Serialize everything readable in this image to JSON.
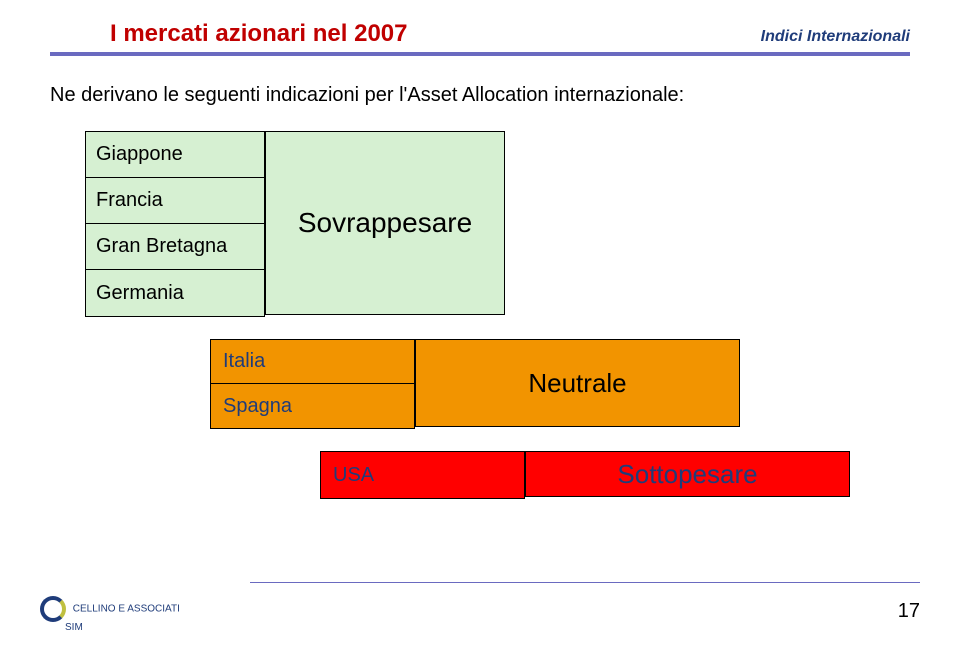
{
  "header": {
    "title": "I mercati azionari nel 2007",
    "subtitle": "Indici Internazionali",
    "underline_color": "#6a6ac0"
  },
  "intro": "Ne derivano le seguenti indicazioni per l'Asset Allocation internazionale:",
  "blocks": {
    "sovrappesare": {
      "items": [
        "Giappone",
        "Francia",
        "Gran Bretagna",
        "Germania"
      ],
      "label": "Sovrappesare",
      "bg_color": "#d6f0d2",
      "label_color": "#000000",
      "item_color": "#000000"
    },
    "neutrale": {
      "items": [
        "Italia",
        "Spagna"
      ],
      "label": "Neutrale",
      "bg_color": "#f29400",
      "label_color": "#000000",
      "item_color": "#1f3c7a"
    },
    "sottopesare": {
      "items": [
        "USA"
      ],
      "label": "Sottopesare",
      "bg_color": "#ff0000",
      "label_color": "#1f3c7a",
      "item_color": "#1f3c7a"
    }
  },
  "footer": {
    "page_number": "17",
    "logo_line1": "CELLINO E ASSOCIATI",
    "logo_line2": "SIM"
  },
  "styles": {
    "title_color": "#c00000",
    "subtitle_color": "#1f3c7a",
    "title_fontsize": 24,
    "subtitle_fontsize": 16,
    "intro_fontsize": 20,
    "label_fontsize": 28,
    "item_fontsize": 20,
    "border_color": "#000000"
  }
}
